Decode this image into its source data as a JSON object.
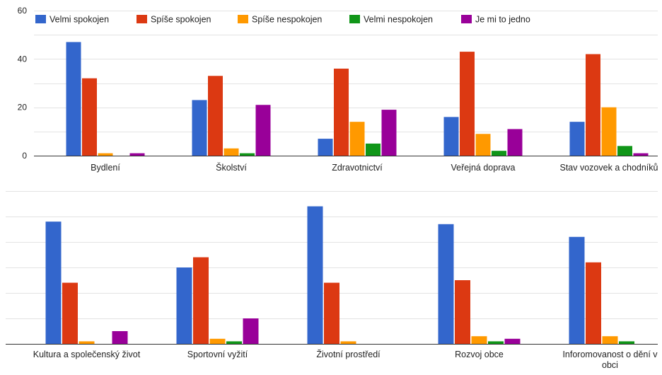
{
  "chart_data": [
    {
      "type": "bar",
      "title": "",
      "xlabel": "",
      "ylabel": "",
      "ylim": [
        0,
        60
      ],
      "yticks": [
        0,
        20,
        40,
        60
      ],
      "grid": true,
      "legend": "top",
      "categories": [
        [
          "Bydlení"
        ],
        [
          "Školství"
        ],
        [
          "Zdravotnictví"
        ],
        [
          "Veřejná doprava"
        ],
        [
          "Stav vozovek a chodníků"
        ]
      ],
      "series": [
        {
          "name": "Velmi spokojen",
          "color": "#3366cc",
          "values": [
            47,
            23,
            7,
            16,
            14
          ]
        },
        {
          "name": "Spíše spokojen",
          "color": "#dc3912",
          "values": [
            32,
            33,
            36,
            43,
            42
          ]
        },
        {
          "name": "Spíše nespokojen",
          "color": "#ff9900",
          "values": [
            1,
            3,
            14,
            9,
            20
          ]
        },
        {
          "name": "Velmi nespokojen",
          "color": "#109618",
          "values": [
            0,
            1,
            5,
            2,
            4
          ]
        },
        {
          "name": "Je mi to jedno",
          "color": "#990099",
          "values": [
            1,
            21,
            19,
            11,
            1
          ]
        }
      ]
    },
    {
      "type": "bar",
      "title": "",
      "xlabel": "",
      "ylabel": "",
      "ylim": [
        0,
        60
      ],
      "grid": true,
      "legend": "none",
      "categories": [
        [
          "Kultura a společenský život"
        ],
        [
          "Sportovní vyžití"
        ],
        [
          "Životní prostředí"
        ],
        [
          "Rozvoj obce"
        ],
        [
          "Inforomovanost o dění v",
          "obci"
        ]
      ],
      "series": [
        {
          "name": "Velmi spokojen",
          "color": "#3366cc",
          "values": [
            48,
            30,
            54,
            47,
            42
          ]
        },
        {
          "name": "Spíše spokojen",
          "color": "#dc3912",
          "values": [
            24,
            34,
            24,
            25,
            32
          ]
        },
        {
          "name": "Spíše nespokojen",
          "color": "#ff9900",
          "values": [
            1,
            2,
            1,
            3,
            3
          ]
        },
        {
          "name": "Velmi nespokojen",
          "color": "#109618",
          "values": [
            0,
            1,
            0,
            1,
            1
          ]
        },
        {
          "name": "Je mi to jedno",
          "color": "#990099",
          "values": [
            5,
            10,
            0,
            2,
            0
          ]
        }
      ]
    }
  ]
}
